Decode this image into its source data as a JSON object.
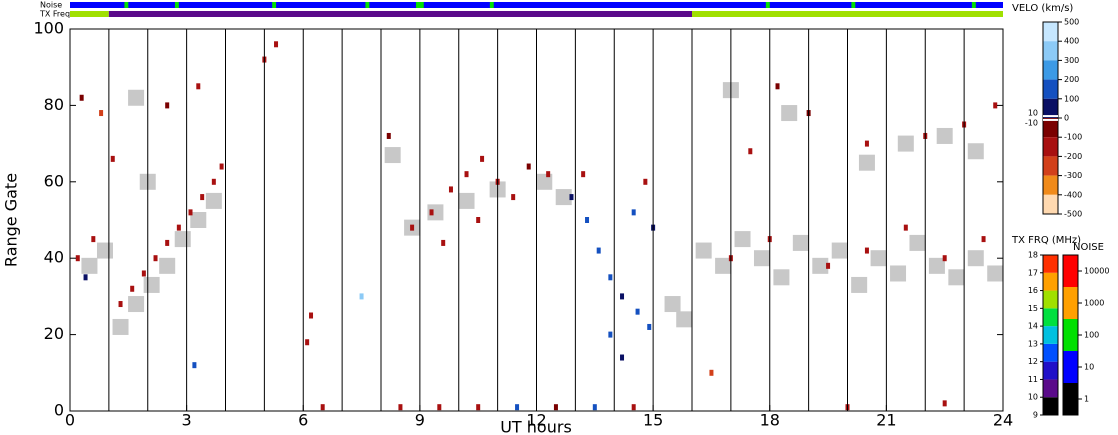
{
  "chart_data": {
    "type": "range_time",
    "xlabel": "UT hours",
    "ylabel": "Range Gate",
    "xlim": [
      0,
      24
    ],
    "ylim": [
      0,
      100
    ],
    "xticks": [
      0,
      3,
      6,
      9,
      12,
      15,
      18,
      21,
      24
    ],
    "yticks": [
      0,
      20,
      40,
      60,
      80,
      100
    ],
    "xgrid": [
      1,
      2,
      3,
      4,
      5,
      6,
      7,
      8,
      9,
      10,
      11,
      12,
      13,
      14,
      15,
      16,
      17,
      18,
      19,
      20,
      21,
      22,
      23
    ],
    "noise_bar_label": "Noise",
    "tx_bar_label": "TX Freq",
    "tx_segments": [
      {
        "start": 0,
        "end": 1,
        "freq": 15.5
      },
      {
        "start": 1,
        "end": 16,
        "freq": 10.5
      },
      {
        "start": 16,
        "end": 24,
        "freq": 15.5
      }
    ],
    "noise_segments": [
      {
        "start": 0,
        "end": 24,
        "noise": 10
      },
      {
        "start": 1.4,
        "end": 1.5,
        "noise": 100
      },
      {
        "start": 2.7,
        "end": 2.8,
        "noise": 100
      },
      {
        "start": 5.2,
        "end": 5.3,
        "noise": 100
      },
      {
        "start": 7.6,
        "end": 7.7,
        "noise": 100
      },
      {
        "start": 8.9,
        "end": 9.1,
        "noise": 100
      },
      {
        "start": 10.8,
        "end": 10.9,
        "noise": 100
      },
      {
        "start": 17.9,
        "end": 18,
        "noise": 100
      },
      {
        "start": 20.1,
        "end": 20.2,
        "noise": 100
      },
      {
        "start": 23.2,
        "end": 23.3,
        "noise": 100
      }
    ],
    "velo_title": "VELO (km/s)",
    "velo_ticks": [
      500,
      400,
      300,
      200,
      100,
      0,
      -100,
      -200,
      -300,
      -400,
      -500
    ],
    "velo_small_ticks": [
      10,
      -10
    ],
    "velo_colors": [
      "#c6e7ff",
      "#8ccaf6",
      "#3c9ae6",
      "#1450c0",
      "#0a1064",
      "#7a0000",
      "#a81010",
      "#d2401a",
      "#f08a1a",
      "#ffd9b0"
    ],
    "ground_color": "#c8c8c8",
    "tx_title": "TX FRQ (MHz)",
    "tx_ticks": [
      9,
      10,
      11,
      12,
      13,
      14,
      15,
      16,
      17,
      18
    ],
    "tx_colors": [
      "#000000",
      "#5a0a8a",
      "#2010c8",
      "#0050ff",
      "#00c0e0",
      "#00e040",
      "#a0e000",
      "#ffa000",
      "#ff3000"
    ],
    "noise_title": "NOISE",
    "noise_ticks": [
      1,
      10,
      100,
      1000,
      10000
    ],
    "noise_colors": [
      "#000000",
      "#0000ff",
      "#00e000",
      "#ffa000",
      "#ff0000"
    ],
    "points": {
      "x": [
        0.2,
        0.4,
        0.6,
        0.8,
        0.3,
        1.3,
        1.6,
        1.9,
        2.2,
        2.5,
        2.8,
        3.1,
        3.4,
        3.7,
        3.9,
        3.3,
        1.1,
        2.5,
        5.0,
        5.3,
        6.1,
        6.2,
        8.2,
        8.8,
        9.3,
        9.8,
        10.2,
        10.6,
        11.0,
        11.4,
        9.6,
        10.5,
        11.8,
        12.3,
        12.9,
        13.3,
        13.6,
        13.9,
        14.2,
        14.6,
        14.9,
        14.5,
        15.0,
        13.9,
        14.2,
        13.2,
        14.8,
        8.5,
        9.5,
        10.5,
        11.5,
        12.5,
        13.5,
        14.5,
        6.5,
        17.0,
        18.0,
        19.5,
        20.5,
        21.5,
        22.5,
        23.5,
        17.5,
        19.0,
        20.5,
        22.0,
        23.0,
        23.8,
        16.5,
        20.0,
        22.5,
        3.2,
        7.5,
        18.2
      ],
      "y": [
        40,
        35,
        45,
        78,
        82,
        28,
        32,
        36,
        40,
        44,
        48,
        52,
        56,
        60,
        64,
        85,
        66,
        80,
        92,
        96,
        18,
        25,
        72,
        48,
        52,
        58,
        62,
        66,
        60,
        56,
        44,
        50,
        64,
        62,
        56,
        50,
        42,
        35,
        30,
        26,
        22,
        52,
        48,
        20,
        14,
        62,
        60,
        1,
        1,
        1,
        1,
        1,
        1,
        1,
        1,
        40,
        45,
        38,
        42,
        48,
        40,
        45,
        68,
        78,
        70,
        72,
        75,
        80,
        10,
        1,
        2,
        12,
        30,
        85
      ],
      "velocity": [
        -150,
        80,
        -200,
        -250,
        -100,
        -150,
        -200,
        -150,
        -120,
        -180,
        -150,
        -200,
        -150,
        -130,
        -180,
        -200,
        -200,
        -100,
        -180,
        -150,
        -200,
        -150,
        -100,
        -200,
        -180,
        -200,
        -150,
        -200,
        -180,
        -120,
        -200,
        -150,
        -100,
        -150,
        80,
        100,
        120,
        100,
        90,
        110,
        100,
        100,
        90,
        100,
        80,
        -150,
        -180,
        -150,
        -200,
        -150,
        100,
        -100,
        120,
        -200,
        -150,
        -200,
        -150,
        -200,
        -180,
        -150,
        -200,
        -150,
        -150,
        -100,
        -200,
        -150,
        -180,
        -200,
        -250,
        -150,
        -200,
        120,
        300,
        -100
      ]
    },
    "ground_scatter": {
      "x": [
        0.5,
        0.9,
        1.3,
        1.7,
        2.1,
        2.5,
        2.9,
        3.3,
        3.7,
        2.0,
        1.7,
        8.3,
        8.8,
        9.4,
        10.2,
        11.0,
        12.2,
        12.7,
        15.5,
        15.8,
        16.3,
        16.8,
        17.3,
        17.8,
        18.3,
        18.8,
        19.3,
        19.8,
        20.3,
        20.8,
        21.3,
        21.8,
        22.3,
        22.8,
        23.3,
        23.8,
        18.5,
        20.5,
        21.5,
        22.5,
        23.3,
        17.0
      ],
      "y": [
        38,
        42,
        22,
        28,
        33,
        38,
        45,
        50,
        55,
        60,
        82,
        67,
        48,
        52,
        55,
        58,
        60,
        56,
        28,
        24,
        42,
        38,
        45,
        40,
        35,
        44,
        38,
        42,
        33,
        40,
        36,
        44,
        38,
        35,
        40,
        36,
        78,
        65,
        70,
        72,
        68,
        84
      ]
    }
  }
}
